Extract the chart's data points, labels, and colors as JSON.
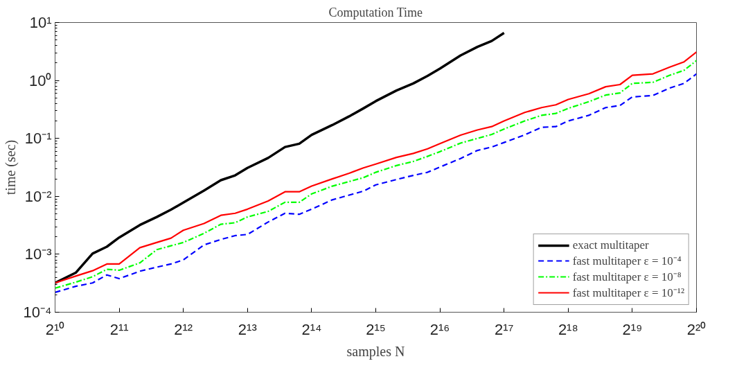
{
  "chart_data": {
    "type": "line",
    "title": "Computation Time",
    "xlabel": "samples N",
    "ylabel": "time (sec)",
    "log": "xy",
    "grid": false,
    "legend": "bottom right",
    "xlim": [
      1024,
      1048576
    ],
    "ylim": [
      0.0001,
      10
    ],
    "xticks": [
      {
        "value": 1024,
        "label": "2¹⁰"
      },
      {
        "value": 2048,
        "label": "2¹¹"
      },
      {
        "value": 4096,
        "label": "2¹²"
      },
      {
        "value": 8192,
        "label": "2¹³"
      },
      {
        "value": 16384,
        "label": "2¹⁴"
      },
      {
        "value": 32768,
        "label": "2¹⁵"
      },
      {
        "value": 65536,
        "label": "2¹⁶"
      },
      {
        "value": 131072,
        "label": "2¹⁷"
      },
      {
        "value": 262144,
        "label": "2¹⁸"
      },
      {
        "value": 524288,
        "label": "2¹⁹"
      },
      {
        "value": 1048576,
        "label": "2²⁰"
      }
    ],
    "yticks": [
      {
        "value": 0.0001,
        "label": "10⁻⁴"
      },
      {
        "value": 0.001,
        "label": "10⁻³"
      },
      {
        "value": 0.01,
        "label": "10⁻²"
      },
      {
        "value": 0.1,
        "label": "10⁻¹"
      },
      {
        "value": 1,
        "label": "10⁰"
      },
      {
        "value": 10,
        "label": "10¹"
      }
    ],
    "x": [
      1024,
      1280,
      1536,
      1792,
      2048,
      2560,
      3072,
      3584,
      4096,
      5120,
      6144,
      7168,
      8192,
      10240,
      12288,
      14336,
      16384,
      20480,
      24576,
      28672,
      32768,
      40960,
      49152,
      57344,
      65536,
      81920,
      98304,
      114688,
      131072,
      163840,
      196608,
      229376,
      262144,
      327680,
      393216,
      458752,
      524288,
      655360,
      786432,
      917504,
      1048576
    ],
    "series": [
      {
        "name": "exact multitaper",
        "color": "#000000",
        "line_style": "solid",
        "x": [
          1024,
          1280,
          1536,
          1792,
          2048,
          2560,
          3072,
          3584,
          4096,
          5120,
          6144,
          7168,
          8192,
          10240,
          12288,
          14336,
          16384,
          20480,
          24576,
          28672,
          32768,
          40960,
          49152,
          57344,
          65536,
          81920,
          98304,
          114688,
          131072
        ],
        "values": [
          0.00032,
          0.00048,
          0.00103,
          0.00135,
          0.00195,
          0.0032,
          0.0044,
          0.0059,
          0.0078,
          0.0126,
          0.019,
          0.023,
          0.031,
          0.046,
          0.071,
          0.081,
          0.115,
          0.17,
          0.24,
          0.33,
          0.44,
          0.67,
          0.89,
          1.2,
          1.6,
          2.7,
          3.8,
          4.8,
          6.6
        ]
      },
      {
        "name": "fast multitaper ε = 10⁻⁴",
        "color": "#0000ff",
        "line_style": "dashed",
        "values": [
          0.00022,
          0.00028,
          0.00032,
          0.00044,
          0.00038,
          0.00051,
          0.0006,
          0.00068,
          0.0008,
          0.00145,
          0.0018,
          0.0021,
          0.0022,
          0.0036,
          0.0051,
          0.0049,
          0.006,
          0.0087,
          0.0105,
          0.0123,
          0.0158,
          0.0195,
          0.023,
          0.026,
          0.032,
          0.045,
          0.062,
          0.071,
          0.085,
          0.115,
          0.155,
          0.16,
          0.2,
          0.25,
          0.34,
          0.37,
          0.52,
          0.55,
          0.74,
          0.89,
          1.3
        ]
      },
      {
        "name": "fast multitaper ε = 10⁻⁸",
        "color": "#00ff00",
        "line_style": "dashdot",
        "values": [
          0.00026,
          0.00033,
          0.00041,
          0.00055,
          0.00053,
          0.00071,
          0.0012,
          0.0014,
          0.0016,
          0.0023,
          0.0033,
          0.0035,
          0.0044,
          0.0055,
          0.0079,
          0.0079,
          0.011,
          0.015,
          0.018,
          0.021,
          0.026,
          0.034,
          0.04,
          0.049,
          0.059,
          0.083,
          0.1,
          0.117,
          0.145,
          0.2,
          0.25,
          0.27,
          0.33,
          0.43,
          0.56,
          0.61,
          0.89,
          0.93,
          1.23,
          1.5,
          2.2
        ]
      },
      {
        "name": "fast multitaper ε = 10⁻¹²",
        "color": "#ff0000",
        "line_style": "solid",
        "values": [
          0.00032,
          0.00042,
          0.00052,
          0.00068,
          0.00068,
          0.0013,
          0.0016,
          0.0019,
          0.0026,
          0.0034,
          0.0047,
          0.0051,
          0.006,
          0.0083,
          0.012,
          0.012,
          0.015,
          0.02,
          0.025,
          0.031,
          0.036,
          0.047,
          0.055,
          0.066,
          0.081,
          0.114,
          0.14,
          0.16,
          0.2,
          0.28,
          0.34,
          0.38,
          0.47,
          0.59,
          0.78,
          0.85,
          1.23,
          1.3,
          1.7,
          2.1,
          3.1
        ]
      }
    ]
  }
}
